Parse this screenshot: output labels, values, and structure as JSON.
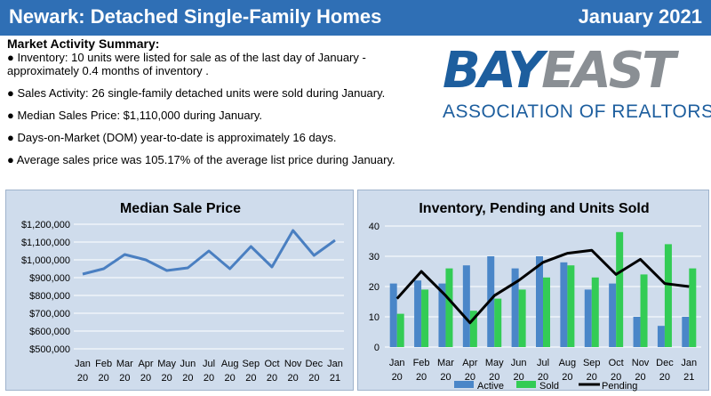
{
  "header": {
    "title": "Newark: Detached Single-Family Homes",
    "date": "January 2021"
  },
  "summary": {
    "heading": "Market Activity Summary:",
    "items": [
      "● Inventory: 10 units were listed for sale as of the last day of January - approximately 0.4 months of inventory .",
      "● Sales Activity: 26 single-family detached units were sold during January.",
      "● Median Sales Price: $1,110,000 during January.",
      "● Days-on-Market (DOM) year-to-date is approximately 16 days.",
      "● Average sales price was 105.17% of the average list price during January."
    ]
  },
  "logo": {
    "word1": "BAY",
    "word2": "EAST",
    "subtitle": "ASSOCIATION OF REALTORS®"
  },
  "chart_data": [
    {
      "type": "line",
      "title": "Median Sale Price",
      "categories": [
        [
          "Jan",
          "20"
        ],
        [
          "Feb",
          "20"
        ],
        [
          "Mar",
          "20"
        ],
        [
          "Apr",
          "20"
        ],
        [
          "May",
          "20"
        ],
        [
          "Jun",
          "20"
        ],
        [
          "Jul",
          "20"
        ],
        [
          "Aug",
          "20"
        ],
        [
          "Sep",
          "20"
        ],
        [
          "Oct",
          "20"
        ],
        [
          "Nov",
          "20"
        ],
        [
          "Dec",
          "20"
        ],
        [
          "Jan",
          "21"
        ]
      ],
      "values": [
        920000,
        950000,
        1030000,
        1000000,
        940000,
        955000,
        1050000,
        950000,
        1075000,
        960000,
        1165000,
        1025000,
        1110000
      ],
      "yticks": [
        "$500,000",
        "$600,000",
        "$700,000",
        "$800,000",
        "$900,000",
        "$1,000,000",
        "$1,100,000",
        "$1,200,000"
      ],
      "ylim": [
        500000,
        1200000
      ],
      "grid": true,
      "color": "#4a7fc1"
    },
    {
      "type": "bar",
      "title": "Inventory, Pending and Units Sold",
      "categories": [
        [
          "Jan",
          "20"
        ],
        [
          "Feb",
          "20"
        ],
        [
          "Mar",
          "20"
        ],
        [
          "Apr",
          "20"
        ],
        [
          "May",
          "20"
        ],
        [
          "Jun",
          "20"
        ],
        [
          "Jul",
          "20"
        ],
        [
          "Aug",
          "20"
        ],
        [
          "Sep",
          "20"
        ],
        [
          "Oct",
          "20"
        ],
        [
          "Nov",
          "20"
        ],
        [
          "Dec",
          "20"
        ],
        [
          "Jan",
          "21"
        ]
      ],
      "series": [
        {
          "name": "Active",
          "type": "bar",
          "color": "#4a86c8",
          "values": [
            21,
            22,
            21,
            27,
            30,
            26,
            30,
            28,
            19,
            21,
            10,
            7,
            10
          ]
        },
        {
          "name": "Sold",
          "type": "bar",
          "color": "#33cc55",
          "values": [
            11,
            19,
            26,
            12,
            16,
            19,
            23,
            27,
            23,
            38,
            24,
            34,
            26
          ]
        },
        {
          "name": "Pending",
          "type": "line",
          "color": "#000000",
          "values": [
            16,
            25,
            17,
            8,
            17,
            22,
            28,
            31,
            32,
            24,
            29,
            21,
            20
          ]
        }
      ],
      "yticks": [
        "0",
        "10",
        "20",
        "30",
        "40"
      ],
      "ylim": [
        0,
        40
      ],
      "grid": true,
      "legend": "bottom"
    }
  ]
}
